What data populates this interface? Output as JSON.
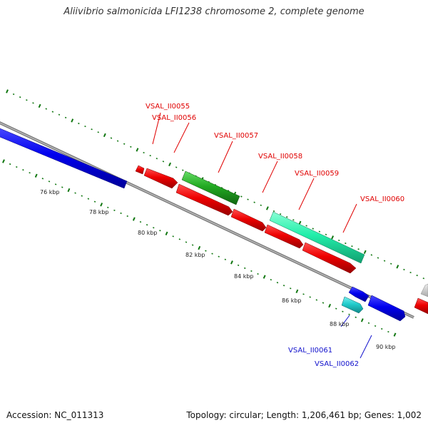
{
  "title": "Aliivibrio salmonicida LFI1238 chromosome 2, complete genome",
  "accession_label": "Accession: NC_011313",
  "summary_label": "Topology: circular; Length: 1,206,461 bp; Genes: 1,002",
  "scale_labels": [
    "76 kbp",
    "78 kbp",
    "80 kbp",
    "82 kbp",
    "84 kbp",
    "86 kbp",
    "88 kbp",
    "90 kbp"
  ],
  "gene_labels": [
    {
      "name": "VSAL_II0055",
      "color": "#e00000"
    },
    {
      "name": "VSAL_II0056",
      "color": "#e00000"
    },
    {
      "name": "VSAL_II0057",
      "color": "#e00000"
    },
    {
      "name": "VSAL_II0058",
      "color": "#e00000"
    },
    {
      "name": "VSAL_II0059",
      "color": "#e00000"
    },
    {
      "name": "VSAL_II0060",
      "color": "#e00000"
    },
    {
      "name": "VSAL_II0061",
      "color": "#1010cc"
    },
    {
      "name": "VSAL_II0062",
      "color": "#1010cc"
    }
  ],
  "colors": {
    "red": "#ee0000",
    "blue": "#0000ee",
    "green": "#22aa22",
    "mint": "#22eeaa",
    "cyan": "#22cccc",
    "grey": "#cccccc",
    "backbone": "#888888",
    "tick": "#117711"
  }
}
